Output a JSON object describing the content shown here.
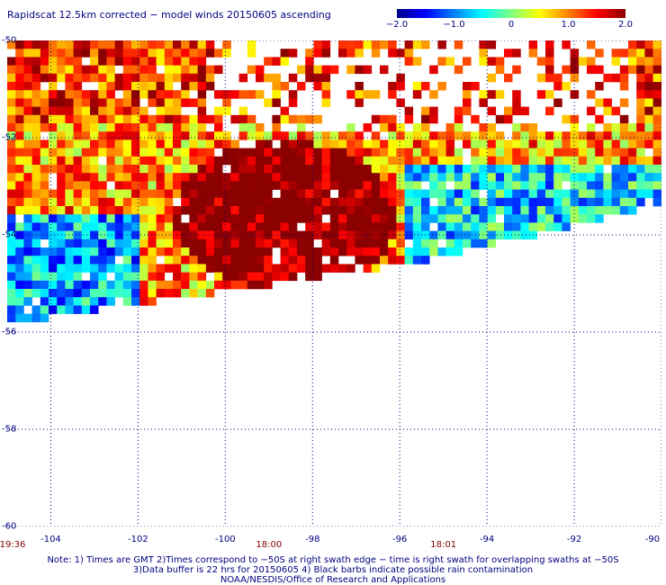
{
  "title": "Rapidscat 12.5km corrected − model winds 20150605 ascending",
  "colorbar": {
    "min": -2.0,
    "max": 2.0,
    "ticks": [
      {
        "value": -2.0,
        "label": "−2.0"
      },
      {
        "value": -1.0,
        "label": "−1.0"
      },
      {
        "value": 0,
        "label": "0"
      },
      {
        "value": 1.0,
        "label": "1.0"
      },
      {
        "value": 2.0,
        "label": "2.0"
      }
    ],
    "colors": [
      "#00008b",
      "#0000ff",
      "#0080ff",
      "#00ffff",
      "#80ff80",
      "#ffff00",
      "#ff8000",
      "#ff0000",
      "#8b0000"
    ]
  },
  "map": {
    "lon_range": [
      -105,
      -90
    ],
    "lat_range": [
      -60,
      -50
    ],
    "lon_ticks": [
      -104,
      -102,
      -100,
      -98,
      -96,
      -94,
      -92,
      -90
    ],
    "lat_ticks": [
      -50,
      -52,
      -54,
      -56,
      -58,
      -60
    ],
    "lon_labels": [
      "-104",
      "-102",
      "-100",
      "-98",
      "-96",
      "-94",
      "-92",
      "-90"
    ],
    "lat_labels": [
      "-50",
      "-52",
      "-54",
      "-56",
      "-58",
      "-60"
    ],
    "grid": true,
    "grid_color": "#000080"
  },
  "time_labels": [
    {
      "label": "19:36",
      "lon": -105.0
    },
    {
      "label": "18:00",
      "lon": -99.0
    },
    {
      "label": "18:01",
      "lon": -95.0
    }
  ],
  "notes": {
    "line1": "Note: 1) Times are GMT 2)Times correspond to −50S at right swath edge − time is right swath for overlapping swaths at −50S",
    "line2": "3)Data buffer is 22 hrs for 20150605 4) Black barbs indicate possible rain contamination",
    "line3": "NOAA/NESDIS/Office of Research and Applications"
  }
}
